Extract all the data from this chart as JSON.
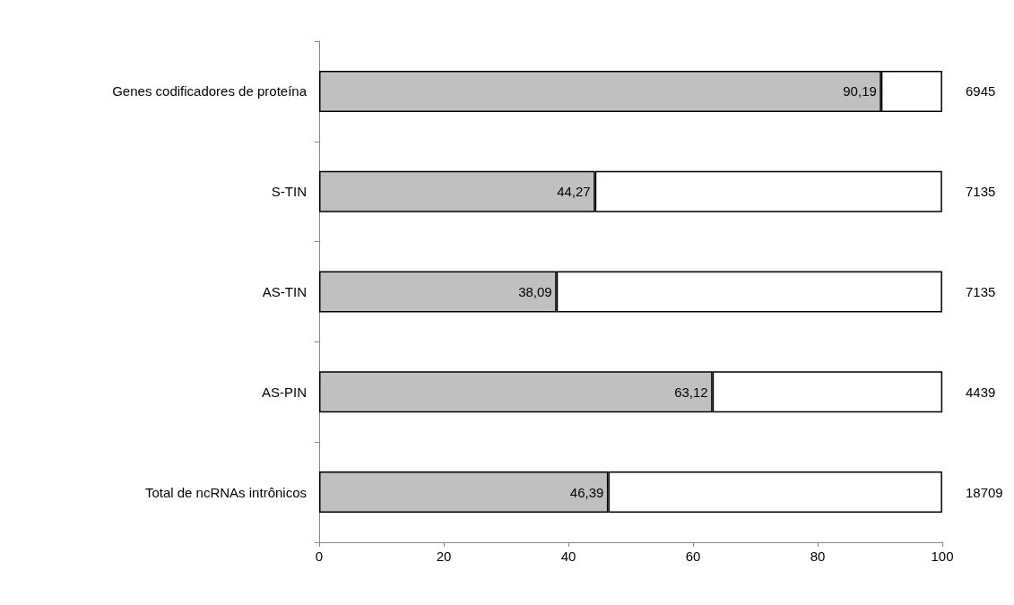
{
  "chart_data": {
    "type": "bar",
    "orientation": "horizontal",
    "stacked": true,
    "categories": [
      "Genes codificadores de proteína",
      "S-TIN",
      "AS-TIN",
      "AS-PIN",
      "Total de ncRNAs intrônicos"
    ],
    "series": [
      {
        "color": "#c0c0c0",
        "values": [
          90.19,
          44.27,
          38.09,
          63.12,
          46.39
        ],
        "value_labels": [
          "90,19",
          "44,27",
          "38,09",
          "63,12",
          "46,39"
        ]
      },
      {
        "color": "#ffffff",
        "values": [
          9.8,
          55.7,
          61.9,
          36.9,
          53.6
        ]
      }
    ],
    "annotations": [
      "6945",
      "7135",
      "7135",
      "4439",
      "18709"
    ],
    "xlim": [
      0,
      100
    ],
    "xticks": [
      0,
      20,
      40,
      60,
      80,
      100
    ],
    "grid": false
  }
}
